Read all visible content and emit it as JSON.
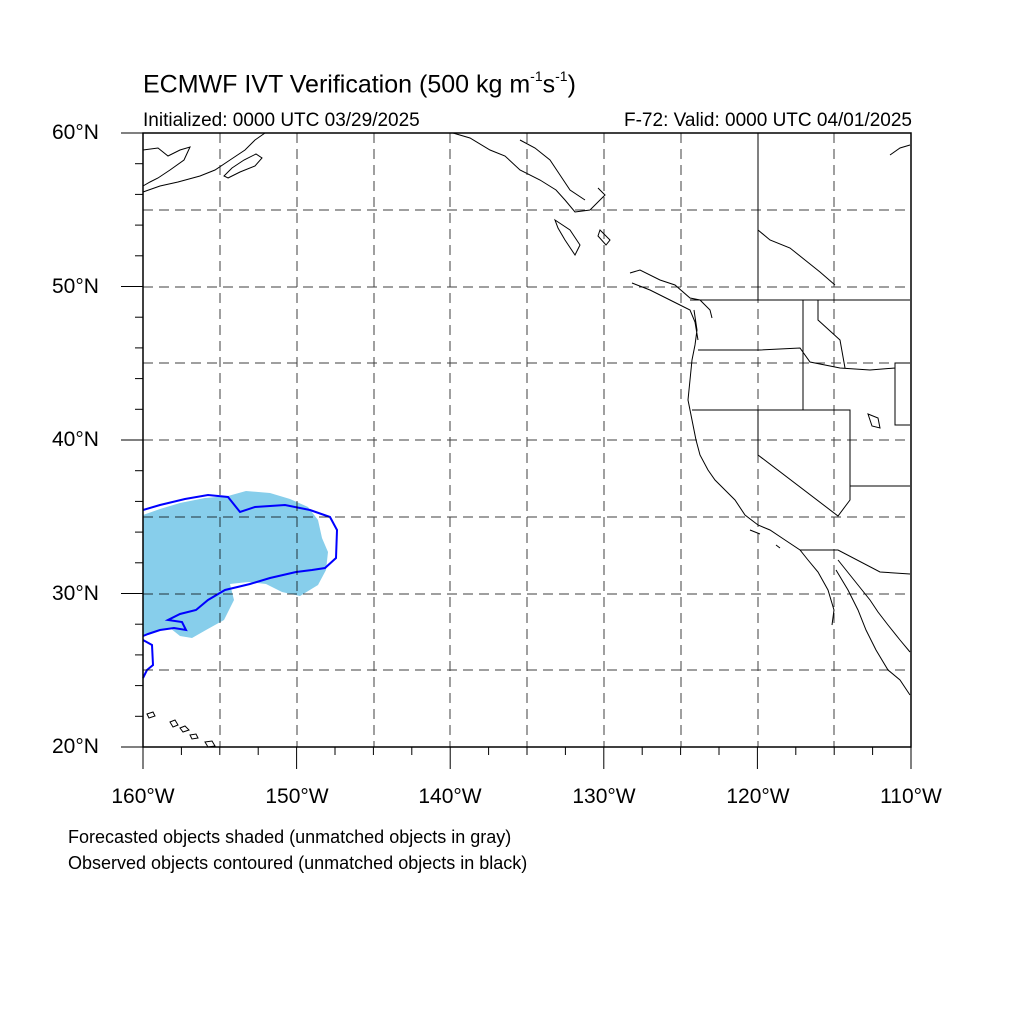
{
  "title": {
    "text_main": "ECMWF IVT Verification (500 kg m",
    "sup1": "-1",
    "text_mid": "s",
    "sup2": "-1",
    "text_end": ")"
  },
  "subtitle_left": "Initialized: 0000 UTC 03/29/2025",
  "subtitle_right": "F-72: Valid: 0000 UTC 04/01/2025",
  "lat_labels": [
    "60°N",
    "50°N",
    "40°N",
    "30°N",
    "20°N"
  ],
  "lon_labels": [
    "160°W",
    "150°W",
    "140°W",
    "130°W",
    "120°W",
    "110°W"
  ],
  "notes": [
    "Forecasted objects shaded (unmatched objects in gray)",
    "Observed objects contoured (unmatched objects in black)"
  ],
  "map": {
    "extent": {
      "lon": [
        -160,
        -110
      ],
      "lat": [
        20,
        60
      ]
    },
    "grid_spacing_deg": 5,
    "forecast_object_color": "#87ceeb",
    "observed_object_color": "#0000ff",
    "coastline_color": "#000000"
  }
}
